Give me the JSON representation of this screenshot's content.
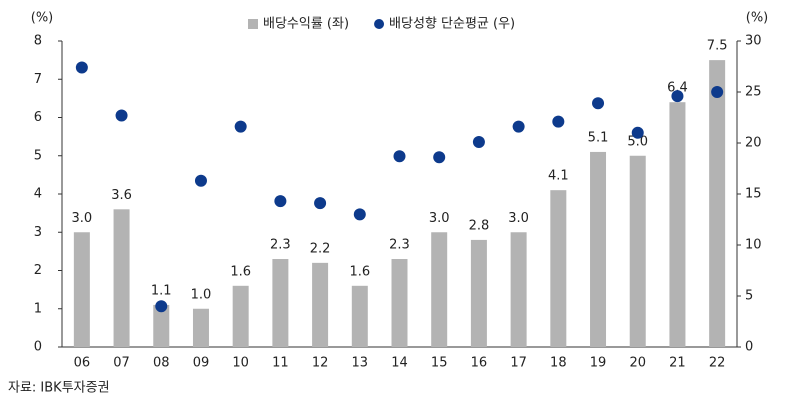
{
  "chart_data": {
    "type": "bar",
    "ylabel": "(%)",
    "y2label": "(%)",
    "source": "자료: IBK투자증권",
    "categories": [
      "06",
      "07",
      "08",
      "09",
      "10",
      "11",
      "12",
      "13",
      "14",
      "15",
      "16",
      "17",
      "18",
      "19",
      "20",
      "21",
      "22"
    ],
    "series": [
      {
        "name": "배당수익률 (좌)",
        "type": "bar",
        "color": "#b3b3b3",
        "values": [
          3.0,
          3.6,
          1.1,
          1.0,
          1.6,
          2.3,
          2.2,
          1.6,
          2.3,
          3.0,
          2.8,
          3.0,
          4.1,
          5.1,
          5.0,
          6.4,
          7.5
        ],
        "value_labels": [
          "3.0",
          "3.6",
          "1.1",
          "1.0",
          "1.6",
          "2.3",
          "2.2",
          "1.6",
          "2.3",
          "3.0",
          "2.8",
          "3.0",
          "4.1",
          "5.1",
          "5.0",
          "6.4",
          "7.5"
        ]
      },
      {
        "name": "배당성향 단순평균 (우)",
        "type": "scatter",
        "axis": "y2",
        "color": "#0d3a8c",
        "values": [
          27.4,
          22.7,
          4.0,
          16.3,
          21.6,
          14.3,
          14.1,
          13.0,
          18.7,
          18.6,
          20.1,
          21.6,
          22.1,
          23.9,
          21.0,
          24.6,
          25.0
        ]
      }
    ],
    "ylim": [
      0,
      8
    ],
    "yticks": [
      0,
      1,
      2,
      3,
      4,
      5,
      6,
      7,
      8
    ],
    "y2lim": [
      0,
      30
    ],
    "y2ticks": [
      0,
      5,
      10,
      15,
      20,
      25,
      30
    ],
    "grid": false
  }
}
